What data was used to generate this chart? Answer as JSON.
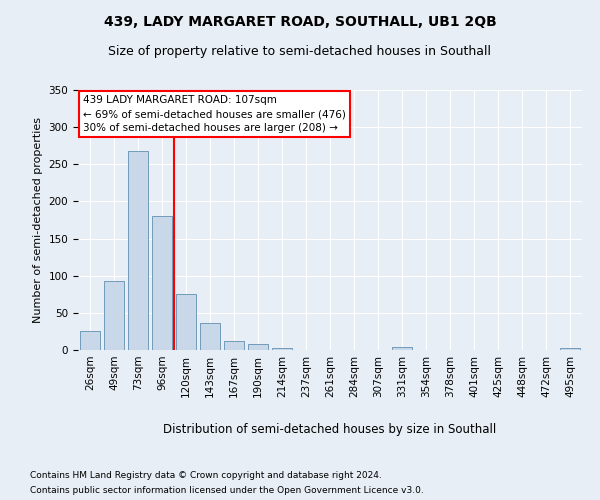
{
  "title1": "439, LADY MARGARET ROAD, SOUTHALL, UB1 2QB",
  "title2": "Size of property relative to semi-detached houses in Southall",
  "xlabel": "Distribution of semi-detached houses by size in Southall",
  "ylabel": "Number of semi-detached properties",
  "footnote1": "Contains HM Land Registry data © Crown copyright and database right 2024.",
  "footnote2": "Contains public sector information licensed under the Open Government Licence v3.0.",
  "annotation_line1": "439 LADY MARGARET ROAD: 107sqm",
  "annotation_line2": "← 69% of semi-detached houses are smaller (476)",
  "annotation_line3": "30% of semi-detached houses are larger (208) →",
  "bar_labels": [
    "26sqm",
    "49sqm",
    "73sqm",
    "96sqm",
    "120sqm",
    "143sqm",
    "167sqm",
    "190sqm",
    "214sqm",
    "237sqm",
    "261sqm",
    "284sqm",
    "307sqm",
    "331sqm",
    "354sqm",
    "378sqm",
    "401sqm",
    "425sqm",
    "448sqm",
    "472sqm",
    "495sqm"
  ],
  "bar_values": [
    25,
    93,
    268,
    181,
    75,
    37,
    12,
    8,
    3,
    0,
    0,
    0,
    0,
    4,
    0,
    0,
    0,
    0,
    0,
    0,
    3
  ],
  "bar_color": "#c8d8e8",
  "bar_edgecolor": "#6090b0",
  "vline_x": 3.5,
  "vline_color": "red",
  "ylim": [
    0,
    350
  ],
  "yticks": [
    0,
    50,
    100,
    150,
    200,
    250,
    300,
    350
  ],
  "bg_color": "#e8eef5",
  "plot_bg_color": "#e8eef5",
  "grid_color": "white",
  "annotation_box_color": "white",
  "annotation_box_edgecolor": "red",
  "title1_fontsize": 10,
  "title2_fontsize": 9,
  "xlabel_fontsize": 8.5,
  "ylabel_fontsize": 8,
  "tick_fontsize": 7.5,
  "annotation_fontsize": 7.5,
  "footnote_fontsize": 6.5
}
